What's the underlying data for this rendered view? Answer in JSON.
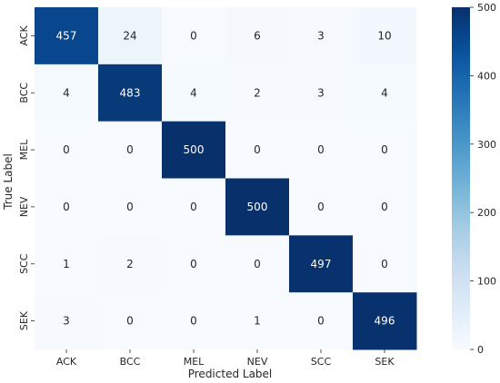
{
  "chart_data": {
    "type": "heatmap",
    "title": "",
    "xlabel": "Predicted Label",
    "ylabel": "True Label",
    "x_categories": [
      "ACK",
      "BCC",
      "MEL",
      "NEV",
      "SCC",
      "SEK"
    ],
    "y_categories": [
      "ACK",
      "BCC",
      "MEL",
      "NEV",
      "SCC",
      "SEK"
    ],
    "values": [
      [
        457,
        24,
        0,
        6,
        3,
        10
      ],
      [
        4,
        483,
        4,
        2,
        3,
        4
      ],
      [
        0,
        0,
        500,
        0,
        0,
        0
      ],
      [
        0,
        0,
        0,
        500,
        0,
        0
      ],
      [
        1,
        2,
        0,
        0,
        497,
        0
      ],
      [
        3,
        0,
        0,
        1,
        0,
        496
      ]
    ],
    "colorbar": {
      "min": 0,
      "max": 500,
      "ticks": [
        0,
        100,
        200,
        300,
        400,
        500
      ],
      "colormap": "Blues"
    },
    "annotation_color_light": "#ffffff",
    "annotation_color_dark": "#262626"
  }
}
